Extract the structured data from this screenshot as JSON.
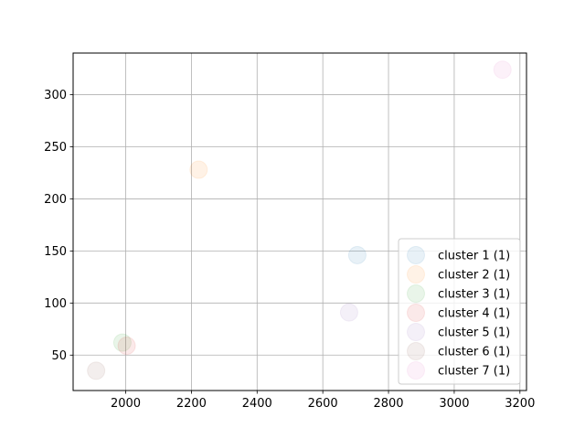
{
  "chart_data": {
    "type": "scatter",
    "title": "",
    "xlabel": "",
    "ylabel": "",
    "xlim": [
      1840,
      3220
    ],
    "ylim": [
      16,
      340
    ],
    "xticks": [
      2000,
      2200,
      2400,
      2600,
      2800,
      3000,
      3200
    ],
    "yticks": [
      50,
      100,
      150,
      200,
      250,
      300
    ],
    "grid": true,
    "legend": "lower right",
    "series": [
      {
        "name": "cluster 1 (1)",
        "color": "#1f77b4",
        "points": [
          {
            "x": 2705,
            "y": 146
          }
        ]
      },
      {
        "name": "cluster 2 (1)",
        "color": "#ff7f0e",
        "points": [
          {
            "x": 2222,
            "y": 228
          }
        ]
      },
      {
        "name": "cluster 3 (1)",
        "color": "#2ca02c",
        "points": [
          {
            "x": 1990,
            "y": 62
          }
        ]
      },
      {
        "name": "cluster 4 (1)",
        "color": "#d62728",
        "points": [
          {
            "x": 2003,
            "y": 59
          }
        ]
      },
      {
        "name": "cluster 5 (1)",
        "color": "#9467bd",
        "points": [
          {
            "x": 2680,
            "y": 91
          }
        ]
      },
      {
        "name": "cluster 6 (1)",
        "color": "#8c564b",
        "points": [
          {
            "x": 1910,
            "y": 35
          }
        ]
      },
      {
        "name": "cluster 7 (1)",
        "color": "#e377c2",
        "points": [
          {
            "x": 3147,
            "y": 324
          }
        ]
      }
    ]
  }
}
